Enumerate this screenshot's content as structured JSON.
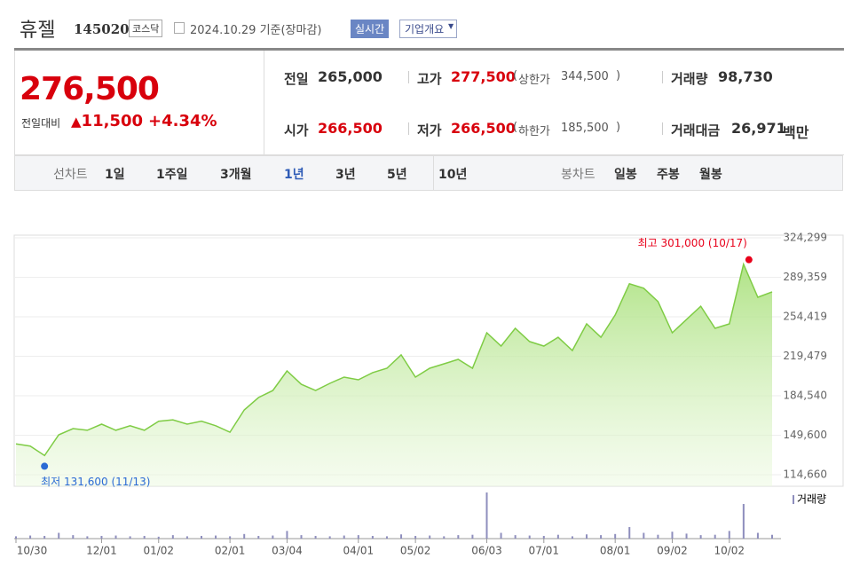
{
  "header": {
    "name": "휴젤",
    "code": "145020",
    "market": "코스닥",
    "date": "2024.10.29 기준(장마감)",
    "realtime": "실시간",
    "company": "기업개요"
  },
  "quote": {
    "price": "276,500",
    "change_label": "전일대비",
    "change": "11,500",
    "change_pct": "+4.34%",
    "cells": [
      {
        "label": "전일",
        "value": "265,000"
      },
      {
        "label": "고가",
        "value": "277,500",
        "sub_label": "상한가",
        "sub_value": "344,500"
      },
      {
        "label": "거래량",
        "value": "98,730"
      },
      {
        "label": "시가",
        "value": "266,500"
      },
      {
        "label": "저가",
        "value": "266,500",
        "sub_label": "하한가",
        "sub_value": "185,500"
      },
      {
        "label": "거래대금",
        "value": "26,971",
        "unit": "백만"
      }
    ]
  },
  "tabs": {
    "line_label": "선차트",
    "line": [
      "1일",
      "1주일",
      "3개월",
      "1년",
      "3년",
      "5년",
      "10년"
    ],
    "line_active": "1년",
    "candle_label": "봉차트",
    "candle": [
      "일봉",
      "주봉",
      "월봉"
    ]
  },
  "chart_data": {
    "type": "line",
    "color": "#7fcc45",
    "categories": [
      "10/30",
      null,
      null,
      null,
      null,
      null,
      "12/01",
      null,
      null,
      null,
      "01/02",
      null,
      null,
      null,
      null,
      "02/01",
      null,
      null,
      null,
      "03/04",
      null,
      null,
      null,
      null,
      "04/01",
      null,
      null,
      null,
      "05/02",
      null,
      null,
      null,
      null,
      "06/03",
      null,
      null,
      null,
      "07/01",
      null,
      null,
      null,
      null,
      "08/01",
      null,
      null,
      null,
      "09/02",
      null,
      null,
      null,
      "10/02",
      null,
      null,
      null
    ],
    "values": [
      142000,
      140000,
      131600,
      150000,
      155500,
      154000,
      159400,
      154000,
      158000,
      154000,
      162000,
      163300,
      159400,
      162000,
      158000,
      152300,
      172000,
      183000,
      189200,
      206500,
      194700,
      189200,
      195500,
      201000,
      198700,
      205000,
      208900,
      220700,
      201000,
      208900,
      212800,
      216700,
      208900,
      240300,
      228500,
      244200,
      232500,
      228500,
      236300,
      224600,
      248100,
      236300,
      256100,
      283600,
      279700,
      267900,
      240300,
      252000,
      263800,
      244200,
      248100,
      301000,
      271700,
      276500
    ],
    "ylim": [
      114660,
      324299
    ],
    "yticks": [
      {
        "value": 114660,
        "label": "114,660"
      },
      {
        "value": 149600,
        "label": "149,600"
      },
      {
        "value": 184540,
        "label": "184,540"
      },
      {
        "value": 219479,
        "label": "219,479"
      },
      {
        "value": 254419,
        "label": "254,419"
      },
      {
        "value": 289359,
        "label": "289,359"
      },
      {
        "value": 324299,
        "label": "324,299"
      }
    ],
    "grid": true,
    "high_label": "최고 301,000 (10/17)",
    "low_label": "최저 131,600 (11/13)",
    "volume": {
      "name": "거래량",
      "color": "#8e8ebd",
      "values": [
        60000,
        80000,
        70000,
        150000,
        90000,
        60000,
        70000,
        80000,
        60000,
        70000,
        50000,
        90000,
        60000,
        70000,
        80000,
        60000,
        120000,
        70000,
        80000,
        200000,
        90000,
        70000,
        60000,
        80000,
        90000,
        70000,
        60000,
        110000,
        70000,
        80000,
        60000,
        90000,
        100000,
        1200000,
        150000,
        90000,
        80000,
        70000,
        100000,
        60000,
        110000,
        90000,
        120000,
        300000,
        150000,
        100000,
        180000,
        130000,
        90000,
        100000,
        200000,
        900000,
        150000,
        98730
      ]
    }
  }
}
